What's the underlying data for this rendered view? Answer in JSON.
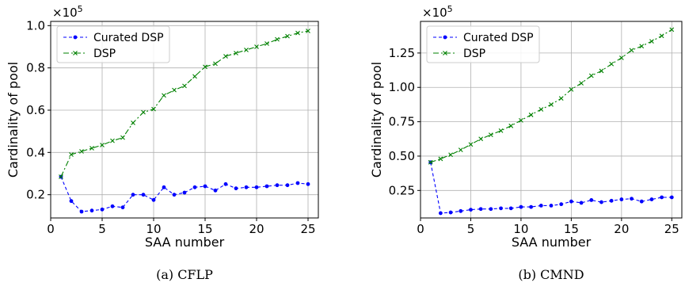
{
  "chart_data": [
    {
      "type": "line",
      "caption": "(a) CFLP",
      "xlabel": "SAA number",
      "ylabel": "Cardinality of pool",
      "y_multiplier": "×10",
      "y_multiplier_exp": "5",
      "xlim": [
        0,
        26
      ],
      "ylim": [
        0.09,
        1.02
      ],
      "xticks": [
        0,
        5,
        10,
        15,
        20,
        25
      ],
      "yticks": [
        0.2,
        0.4,
        0.6,
        0.8,
        1.0
      ],
      "ytick_labels": [
        "0.2",
        "0.4",
        "0.6",
        "0.8",
        "1.0"
      ],
      "grid": true,
      "legend": "top-left",
      "x": [
        1,
        2,
        3,
        4,
        5,
        6,
        7,
        8,
        9,
        10,
        11,
        12,
        13,
        14,
        15,
        16,
        17,
        18,
        19,
        20,
        21,
        22,
        23,
        24,
        25
      ],
      "series": [
        {
          "name": "Curated DSP",
          "color": "#0000ff",
          "marker": "dot",
          "linestyle": "dashed",
          "values": [
            0.285,
            0.17,
            0.12,
            0.125,
            0.13,
            0.145,
            0.14,
            0.2,
            0.2,
            0.175,
            0.235,
            0.2,
            0.21,
            0.235,
            0.24,
            0.22,
            0.25,
            0.23,
            0.235,
            0.235,
            0.24,
            0.245,
            0.245,
            0.255,
            0.25
          ]
        },
        {
          "name": "DSP",
          "color": "#008000",
          "marker": "x",
          "linestyle": "dashdot",
          "values": [
            0.285,
            0.39,
            0.405,
            0.42,
            0.435,
            0.455,
            0.47,
            0.54,
            0.59,
            0.605,
            0.67,
            0.695,
            0.715,
            0.76,
            0.805,
            0.82,
            0.855,
            0.87,
            0.885,
            0.9,
            0.915,
            0.935,
            0.95,
            0.965,
            0.975
          ]
        }
      ]
    },
    {
      "type": "line",
      "caption": "(b) CMND",
      "xlabel": "SAA number",
      "ylabel": "Cardinality of pool",
      "y_multiplier": "×10",
      "y_multiplier_exp": "5",
      "xlim": [
        0,
        26
      ],
      "ylim": [
        0.05,
        1.48
      ],
      "xticks": [
        0,
        5,
        10,
        15,
        20,
        25
      ],
      "yticks": [
        0.25,
        0.5,
        0.75,
        1.0,
        1.25
      ],
      "ytick_labels": [
        "0.25",
        "0.50",
        "0.75",
        "1.00",
        "1.25"
      ],
      "grid": true,
      "legend": "top-left",
      "x": [
        1,
        2,
        3,
        4,
        5,
        6,
        7,
        8,
        9,
        10,
        11,
        12,
        13,
        14,
        15,
        16,
        17,
        18,
        19,
        20,
        21,
        22,
        23,
        24,
        25
      ],
      "series": [
        {
          "name": "Curated DSP",
          "color": "#0000ff",
          "marker": "dot",
          "linestyle": "dashed",
          "values": [
            0.455,
            0.085,
            0.09,
            0.1,
            0.11,
            0.115,
            0.115,
            0.12,
            0.12,
            0.13,
            0.13,
            0.14,
            0.14,
            0.15,
            0.17,
            0.16,
            0.18,
            0.165,
            0.175,
            0.185,
            0.19,
            0.17,
            0.185,
            0.2,
            0.2
          ]
        },
        {
          "name": "DSP",
          "color": "#008000",
          "marker": "x",
          "linestyle": "dashdot",
          "values": [
            0.455,
            0.48,
            0.51,
            0.545,
            0.585,
            0.625,
            0.655,
            0.685,
            0.72,
            0.76,
            0.8,
            0.84,
            0.875,
            0.92,
            0.985,
            1.03,
            1.085,
            1.12,
            1.17,
            1.215,
            1.27,
            1.3,
            1.335,
            1.375,
            1.42
          ]
        }
      ]
    }
  ]
}
